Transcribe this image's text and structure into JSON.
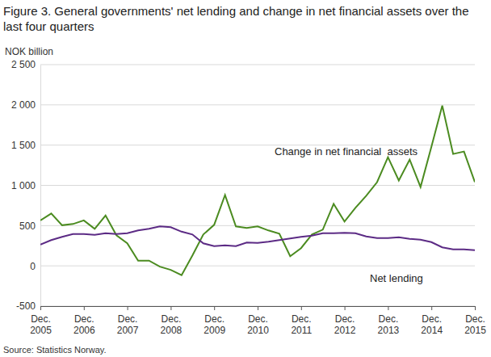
{
  "chart_data": {
    "type": "line",
    "title": "Figure 3. General governments' net lending and change in net financial assets over the last four quarters",
    "ylabel": "NOK billion",
    "source": "Source: Statistics Norway.",
    "categories": [
      "Dec. 2005",
      null,
      null,
      null,
      "Dec. 2006",
      null,
      null,
      null,
      "Dec. 2007",
      null,
      null,
      null,
      "Dec. 2008",
      null,
      null,
      null,
      "Dec. 2009",
      null,
      null,
      null,
      "Dec. 2010",
      null,
      null,
      null,
      "Dec. 2011",
      null,
      null,
      null,
      "Dec. 2012",
      null,
      null,
      null,
      "Dec. 2013",
      null,
      null,
      null,
      "Dec. 2014",
      null,
      null,
      null,
      "Dec. 2015"
    ],
    "series": [
      {
        "name": "Change in net financial  assets",
        "color": "#4b8b20",
        "values": [
          565,
          650,
          505,
          520,
          565,
          460,
          625,
          380,
          280,
          65,
          65,
          -10,
          -50,
          -115,
          130,
          390,
          510,
          880,
          490,
          470,
          490,
          440,
          400,
          120,
          220,
          390,
          450,
          770,
          550,
          720,
          870,
          1040,
          1350,
          1060,
          1320,
          980,
          1480,
          1990,
          1390,
          1420,
          1040
        ]
      },
      {
        "name": "Net lending",
        "color": "#5c2b85",
        "values": [
          265,
          320,
          360,
          395,
          395,
          385,
          405,
          395,
          405,
          440,
          460,
          490,
          480,
          425,
          390,
          280,
          245,
          255,
          245,
          290,
          285,
          300,
          320,
          340,
          360,
          375,
          405,
          405,
          410,
          405,
          365,
          345,
          345,
          355,
          335,
          325,
          295,
          230,
          205,
          205,
          195
        ]
      }
    ],
    "ylim": [
      -500,
      2500
    ],
    "yticks": [
      -500,
      0,
      500,
      {
        "value": 1000,
        "label": "1 000"
      },
      {
        "value": 1500,
        "label": "1 500"
      },
      {
        "value": 2000,
        "label": "2 000"
      },
      {
        "value": 2500,
        "label": "2 500"
      }
    ],
    "grid": true
  }
}
